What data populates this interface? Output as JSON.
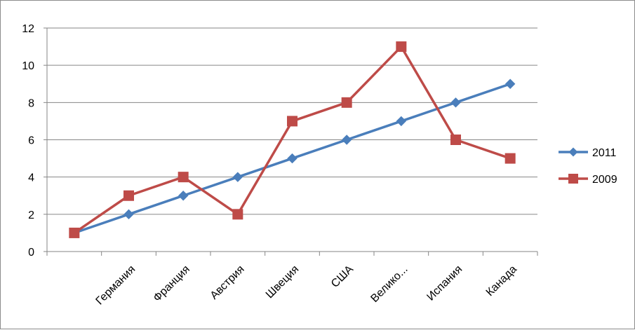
{
  "chart_data": {
    "type": "line",
    "categories": [
      "",
      "Германия",
      "Франция",
      "Австрия",
      "Швеция",
      "США",
      "Велико...",
      "Испания",
      "Канада"
    ],
    "series": [
      {
        "name": "2011",
        "values": [
          1,
          2,
          3,
          4,
          5,
          6,
          7,
          8,
          9
        ],
        "color": "#4a7ebb",
        "marker": "diamond"
      },
      {
        "name": "2009",
        "values": [
          1,
          3,
          4,
          2,
          7,
          8,
          11,
          6,
          5
        ],
        "color": "#be4b48",
        "marker": "square"
      }
    ],
    "ylim": [
      0,
      12
    ],
    "yticks": [
      0,
      2,
      4,
      6,
      8,
      10,
      12
    ],
    "grid": true,
    "legend_position": "right"
  }
}
